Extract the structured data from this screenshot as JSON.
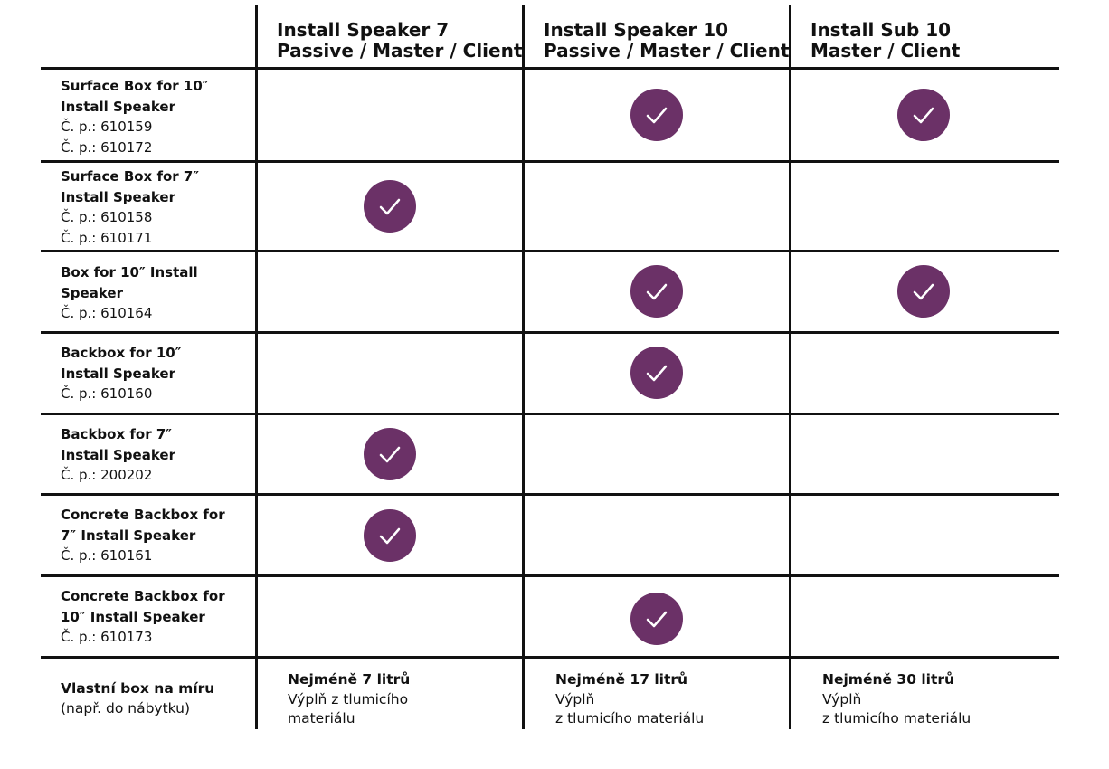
{
  "colors": {
    "check": "#6b3167",
    "lines": "#111111"
  },
  "columns": [
    {
      "line1": "Install Speaker 7",
      "line2": "Passive / Master / Client"
    },
    {
      "line1": "Install Speaker 10",
      "line2": "Passive / Master / Client"
    },
    {
      "line1": "Install Sub 10",
      "line2": "Master / Client"
    }
  ],
  "rows": [
    {
      "name_lines": [
        "Surface Box for 10″",
        "Install Speaker"
      ],
      "parts": [
        "Č. p.: 610159",
        "Č. p.: 610172"
      ],
      "checks": [
        false,
        true,
        true
      ]
    },
    {
      "name_lines": [
        "Surface Box for 7″",
        "Install Speaker"
      ],
      "parts": [
        "Č. p.: 610158",
        "Č. p.: 610171"
      ],
      "checks": [
        true,
        false,
        false
      ]
    },
    {
      "name_lines": [
        "Box for 10″ Install",
        "Speaker"
      ],
      "parts": [
        "Č. p.: 610164"
      ],
      "checks": [
        false,
        true,
        true
      ]
    },
    {
      "name_lines": [
        "Backbox for 10″",
        "Install Speaker"
      ],
      "parts": [
        "Č. p.: 610160"
      ],
      "checks": [
        false,
        true,
        false
      ]
    },
    {
      "name_lines": [
        "Backbox for 7″",
        "Install Speaker"
      ],
      "parts": [
        "Č. p.: 200202"
      ],
      "checks": [
        true,
        false,
        false
      ]
    },
    {
      "name_lines": [
        "Concrete Backbox for",
        "7″ Install Speaker"
      ],
      "parts": [
        "Č. p.: 610161"
      ],
      "checks": [
        true,
        false,
        false
      ]
    },
    {
      "name_lines": [
        "Concrete Backbox for",
        "10″ Install Speaker"
      ],
      "parts": [
        "Č. p.: 610173"
      ],
      "checks": [
        false,
        true,
        false
      ]
    }
  ],
  "custom": {
    "label": "Vlastní box na míru",
    "sub": "(např. do nábytku)",
    "notes": [
      {
        "bold": "Nejméně 7 litrů",
        "lines": [
          "Výplň z tlumicího",
          "materiálu"
        ]
      },
      {
        "bold": "Nejméně 17 litrů",
        "lines": [
          "Výplň",
          "z tlumicího materiálu"
        ]
      },
      {
        "bold": "Nejméně 30 litrů",
        "lines": [
          "Výplň",
          "z tlumicího materiálu"
        ]
      }
    ]
  }
}
